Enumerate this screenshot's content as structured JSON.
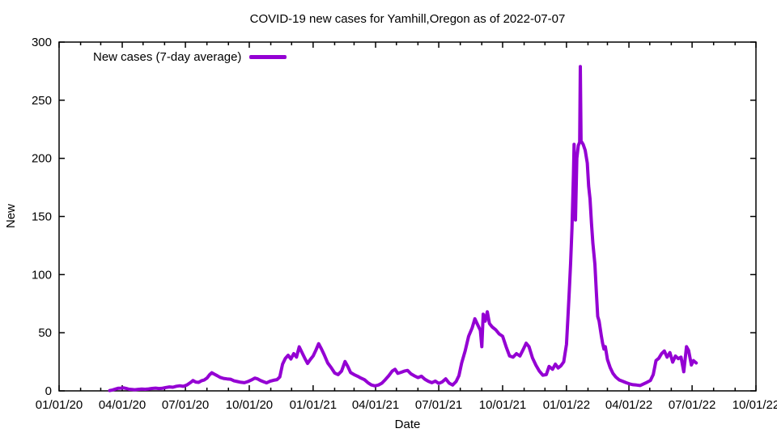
{
  "chart_data": {
    "type": "line",
    "title": "COVID-19 new cases for Yamhill,Oregon as of 2022-07-07",
    "xlabel": "Date",
    "ylabel": "New",
    "grid": false,
    "legend_position": "top-left-inside",
    "legend": [
      {
        "label": "New cases (7-day average)",
        "color": "#9400d3"
      }
    ],
    "x_axis": {
      "start_date": "2020-01-01",
      "end_date": "2022-10-01",
      "minor_tick_interval": "month",
      "major_ticks": [
        {
          "date": "2020-01-01",
          "label": "01/01/20"
        },
        {
          "date": "2020-04-01",
          "label": "04/01/20"
        },
        {
          "date": "2020-07-01",
          "label": "07/01/20"
        },
        {
          "date": "2020-10-01",
          "label": "10/01/20"
        },
        {
          "date": "2021-01-01",
          "label": "01/01/21"
        },
        {
          "date": "2021-04-01",
          "label": "04/01/21"
        },
        {
          "date": "2021-07-01",
          "label": "07/01/21"
        },
        {
          "date": "2021-10-01",
          "label": "10/01/21"
        },
        {
          "date": "2022-01-01",
          "label": "01/01/22"
        },
        {
          "date": "2022-04-01",
          "label": "04/01/22"
        },
        {
          "date": "2022-07-01",
          "label": "07/01/22"
        },
        {
          "date": "2022-10-01",
          "label": "10/01/22"
        }
      ]
    },
    "y_axis": {
      "min": 0,
      "max": 300,
      "tick_step": 50,
      "ticks": [
        0,
        50,
        100,
        150,
        200,
        250,
        300
      ]
    },
    "series": [
      {
        "name": "New cases (7-day average)",
        "color": "#9400d3",
        "points": [
          [
            "2020-03-14",
            0.3
          ],
          [
            "2020-03-18",
            0.8
          ],
          [
            "2020-03-22",
            1.5
          ],
          [
            "2020-03-26",
            2.2
          ],
          [
            "2020-03-30",
            2.4
          ],
          [
            "2020-04-03",
            2.6
          ],
          [
            "2020-04-07",
            2.0
          ],
          [
            "2020-04-11",
            1.4
          ],
          [
            "2020-04-15",
            1.2
          ],
          [
            "2020-04-19",
            1.0
          ],
          [
            "2020-04-24",
            1.3
          ],
          [
            "2020-04-29",
            1.6
          ],
          [
            "2020-05-04",
            1.4
          ],
          [
            "2020-05-09",
            1.7
          ],
          [
            "2020-05-14",
            2.1
          ],
          [
            "2020-05-19",
            2.4
          ],
          [
            "2020-05-24",
            2.0
          ],
          [
            "2020-05-29",
            2.3
          ],
          [
            "2020-06-03",
            2.9
          ],
          [
            "2020-06-08",
            3.4
          ],
          [
            "2020-06-13",
            3.1
          ],
          [
            "2020-06-18",
            4.0
          ],
          [
            "2020-06-23",
            4.4
          ],
          [
            "2020-06-28",
            3.9
          ],
          [
            "2020-07-03",
            5.0
          ],
          [
            "2020-07-08",
            7.0
          ],
          [
            "2020-07-12",
            8.9
          ],
          [
            "2020-07-16",
            7.6
          ],
          [
            "2020-07-20",
            7.3
          ],
          [
            "2020-07-24",
            8.6
          ],
          [
            "2020-07-28",
            9.3
          ],
          [
            "2020-08-01",
            11.0
          ],
          [
            "2020-08-05",
            14.0
          ],
          [
            "2020-08-08",
            15.6
          ],
          [
            "2020-08-12",
            14.3
          ],
          [
            "2020-08-16",
            13.0
          ],
          [
            "2020-08-20",
            11.6
          ],
          [
            "2020-08-25",
            10.7
          ],
          [
            "2020-08-30",
            10.3
          ],
          [
            "2020-09-04",
            10.0
          ],
          [
            "2020-09-09",
            8.6
          ],
          [
            "2020-09-14",
            8.0
          ],
          [
            "2020-09-19",
            7.4
          ],
          [
            "2020-09-24",
            7.0
          ],
          [
            "2020-09-29",
            8.0
          ],
          [
            "2020-10-04",
            9.3
          ],
          [
            "2020-10-09",
            11.0
          ],
          [
            "2020-10-13",
            10.3
          ],
          [
            "2020-10-17",
            9.0
          ],
          [
            "2020-10-21",
            8.0
          ],
          [
            "2020-10-26",
            6.9
          ],
          [
            "2020-10-31",
            8.3
          ],
          [
            "2020-11-05",
            9.1
          ],
          [
            "2020-11-10",
            9.7
          ],
          [
            "2020-11-14",
            12.0
          ],
          [
            "2020-11-18",
            23.0
          ],
          [
            "2020-11-22",
            28.0
          ],
          [
            "2020-11-26",
            30.6
          ],
          [
            "2020-11-30",
            27.4
          ],
          [
            "2020-12-04",
            32.0
          ],
          [
            "2020-12-08",
            29.0
          ],
          [
            "2020-12-12",
            37.9
          ],
          [
            "2020-12-16",
            33.0
          ],
          [
            "2020-12-20",
            28.0
          ],
          [
            "2020-12-24",
            23.6
          ],
          [
            "2020-12-28",
            27.0
          ],
          [
            "2021-01-01",
            30.0
          ],
          [
            "2021-01-05",
            35.0
          ],
          [
            "2021-01-09",
            40.6
          ],
          [
            "2021-01-13",
            36.0
          ],
          [
            "2021-01-17",
            31.0
          ],
          [
            "2021-01-22",
            24.0
          ],
          [
            "2021-01-27",
            20.0
          ],
          [
            "2021-02-01",
            15.4
          ],
          [
            "2021-02-06",
            14.0
          ],
          [
            "2021-02-11",
            17.0
          ],
          [
            "2021-02-16",
            25.3
          ],
          [
            "2021-02-20",
            21.0
          ],
          [
            "2021-02-24",
            15.7
          ],
          [
            "2021-03-01",
            14.0
          ],
          [
            "2021-03-06",
            12.6
          ],
          [
            "2021-03-11",
            11.0
          ],
          [
            "2021-03-16",
            9.6
          ],
          [
            "2021-03-21",
            7.0
          ],
          [
            "2021-03-26",
            5.1
          ],
          [
            "2021-03-31",
            4.3
          ],
          [
            "2021-04-05",
            5.0
          ],
          [
            "2021-04-10",
            6.6
          ],
          [
            "2021-04-15",
            9.7
          ],
          [
            "2021-04-20",
            13.0
          ],
          [
            "2021-04-25",
            17.0
          ],
          [
            "2021-04-29",
            18.6
          ],
          [
            "2021-05-03",
            15.0
          ],
          [
            "2021-05-08",
            16.0
          ],
          [
            "2021-05-13",
            17.1
          ],
          [
            "2021-05-17",
            17.6
          ],
          [
            "2021-05-22",
            14.6
          ],
          [
            "2021-05-27",
            12.9
          ],
          [
            "2021-06-01",
            11.4
          ],
          [
            "2021-06-06",
            12.6
          ],
          [
            "2021-06-11",
            10.0
          ],
          [
            "2021-06-16",
            8.3
          ],
          [
            "2021-06-21",
            7.0
          ],
          [
            "2021-06-26",
            8.4
          ],
          [
            "2021-07-01",
            6.4
          ],
          [
            "2021-07-06",
            7.7
          ],
          [
            "2021-07-11",
            10.4
          ],
          [
            "2021-07-16",
            6.6
          ],
          [
            "2021-07-21",
            5.0
          ],
          [
            "2021-07-26",
            8.0
          ],
          [
            "2021-07-30",
            13.0
          ],
          [
            "2021-08-03",
            24.0
          ],
          [
            "2021-08-08",
            34.3
          ],
          [
            "2021-08-13",
            47.0
          ],
          [
            "2021-08-18",
            54.0
          ],
          [
            "2021-08-22",
            62.0
          ],
          [
            "2021-08-26",
            57.0
          ],
          [
            "2021-08-30",
            52.0
          ],
          [
            "2021-09-01",
            38.0
          ],
          [
            "2021-09-03",
            66.0
          ],
          [
            "2021-09-06",
            60.0
          ],
          [
            "2021-09-09",
            68.0
          ],
          [
            "2021-09-12",
            58.0
          ],
          [
            "2021-09-16",
            55.0
          ],
          [
            "2021-09-21",
            52.6
          ],
          [
            "2021-09-26",
            49.0
          ],
          [
            "2021-10-01",
            47.0
          ],
          [
            "2021-10-06",
            38.0
          ],
          [
            "2021-10-11",
            30.0
          ],
          [
            "2021-10-16",
            29.0
          ],
          [
            "2021-10-21",
            32.0
          ],
          [
            "2021-10-26",
            30.0
          ],
          [
            "2021-10-31",
            36.0
          ],
          [
            "2021-11-04",
            41.0
          ],
          [
            "2021-11-08",
            38.0
          ],
          [
            "2021-11-13",
            28.3
          ],
          [
            "2021-11-18",
            22.0
          ],
          [
            "2021-11-23",
            17.0
          ],
          [
            "2021-11-28",
            13.4
          ],
          [
            "2021-12-03",
            14.0
          ],
          [
            "2021-12-07",
            21.0
          ],
          [
            "2021-12-12",
            18.6
          ],
          [
            "2021-12-16",
            23.0
          ],
          [
            "2021-12-20",
            19.7
          ],
          [
            "2021-12-24",
            21.6
          ],
          [
            "2021-12-28",
            25.0
          ],
          [
            "2022-01-01",
            40.0
          ],
          [
            "2022-01-03",
            62.0
          ],
          [
            "2022-01-05",
            85.0
          ],
          [
            "2022-01-07",
            110.0
          ],
          [
            "2022-01-09",
            140.0
          ],
          [
            "2022-01-10",
            163.0
          ],
          [
            "2022-01-11",
            186.0
          ],
          [
            "2022-01-12",
            212.0
          ],
          [
            "2022-01-14",
            147.0
          ],
          [
            "2022-01-16",
            200.0
          ],
          [
            "2022-01-18",
            211.0
          ],
          [
            "2022-01-20",
            214.0
          ],
          [
            "2022-01-21",
            279.0
          ],
          [
            "2022-01-22",
            215.0
          ],
          [
            "2022-01-25",
            212.0
          ],
          [
            "2022-01-28",
            207.0
          ],
          [
            "2022-01-31",
            196.0
          ],
          [
            "2022-02-02",
            176.0
          ],
          [
            "2022-02-04",
            165.0
          ],
          [
            "2022-02-06",
            144.0
          ],
          [
            "2022-02-08",
            127.0
          ],
          [
            "2022-02-11",
            109.0
          ],
          [
            "2022-02-13",
            85.0
          ],
          [
            "2022-02-15",
            64.0
          ],
          [
            "2022-02-17",
            60.0
          ],
          [
            "2022-02-20",
            48.0
          ],
          [
            "2022-02-22",
            41.0
          ],
          [
            "2022-02-24",
            36.0
          ],
          [
            "2022-02-26",
            38.0
          ],
          [
            "2022-03-01",
            27.0
          ],
          [
            "2022-03-05",
            20.0
          ],
          [
            "2022-03-09",
            15.0
          ],
          [
            "2022-03-13",
            11.9
          ],
          [
            "2022-03-18",
            9.4
          ],
          [
            "2022-03-23",
            8.3
          ],
          [
            "2022-03-28",
            7.0
          ],
          [
            "2022-04-02",
            6.0
          ],
          [
            "2022-04-07",
            5.3
          ],
          [
            "2022-04-12",
            5.0
          ],
          [
            "2022-04-17",
            4.6
          ],
          [
            "2022-04-22",
            6.0
          ],
          [
            "2022-04-27",
            7.4
          ],
          [
            "2022-05-02",
            9.0
          ],
          [
            "2022-05-06",
            14.0
          ],
          [
            "2022-05-10",
            26.0
          ],
          [
            "2022-05-14",
            28.0
          ],
          [
            "2022-05-18",
            32.0
          ],
          [
            "2022-05-22",
            34.3
          ],
          [
            "2022-05-26",
            29.0
          ],
          [
            "2022-05-30",
            32.9
          ],
          [
            "2022-06-03",
            24.7
          ],
          [
            "2022-06-07",
            30.0
          ],
          [
            "2022-06-11",
            27.7
          ],
          [
            "2022-06-15",
            29.0
          ],
          [
            "2022-06-19",
            16.4
          ],
          [
            "2022-06-23",
            38.0
          ],
          [
            "2022-06-26",
            34.7
          ],
          [
            "2022-06-30",
            22.3
          ],
          [
            "2022-07-03",
            26.0
          ],
          [
            "2022-07-07",
            24.0
          ]
        ]
      }
    ]
  }
}
